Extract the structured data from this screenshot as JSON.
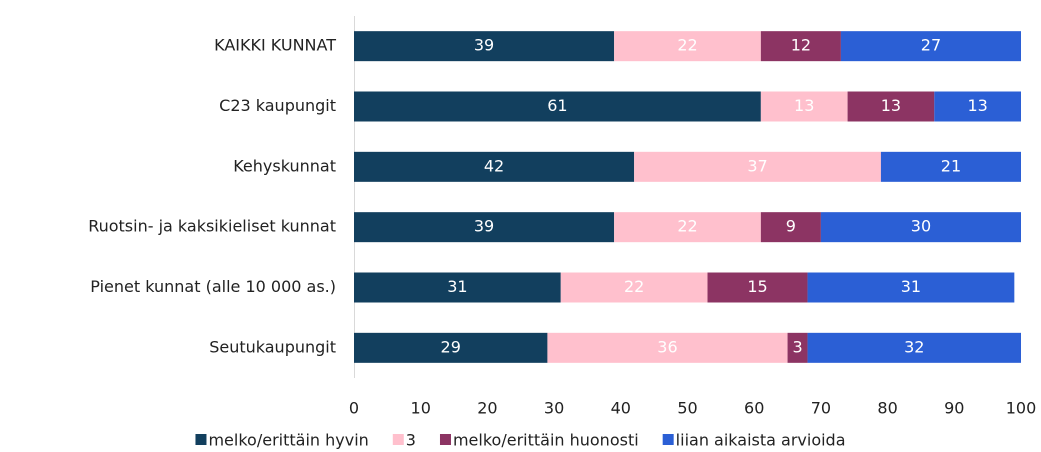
{
  "chart_data": {
    "type": "stacked-bar-horizontal",
    "categories": [
      "KAIKKI KUNNAT",
      "C23 kaupungit",
      "Kehyskunnat",
      "Ruotsin- ja kaksikieliset kunnat",
      "Pienet kunnat (alle 10 000 as.)",
      "Seutukaupungit"
    ],
    "series": [
      {
        "name": "melko/erittäin hyvin",
        "color": "#123f5e",
        "values": [
          39,
          61,
          42,
          39,
          31,
          29
        ]
      },
      {
        "name": "3",
        "color": "#ffc0cd",
        "values": [
          22,
          13,
          37,
          22,
          22,
          36
        ]
      },
      {
        "name": "melko/erittäin huonosti",
        "color": "#8c3463",
        "values": [
          12,
          13,
          null,
          9,
          15,
          3
        ]
      },
      {
        "name": "liian aikaista arvioida",
        "color": "#2b5fd5",
        "values": [
          27,
          13,
          21,
          30,
          31,
          32
        ]
      }
    ],
    "xlim": [
      0,
      100
    ],
    "xticks": [
      0,
      10,
      20,
      30,
      40,
      50,
      60,
      70,
      80,
      90,
      100
    ],
    "grid": false,
    "legend": "bottom"
  }
}
